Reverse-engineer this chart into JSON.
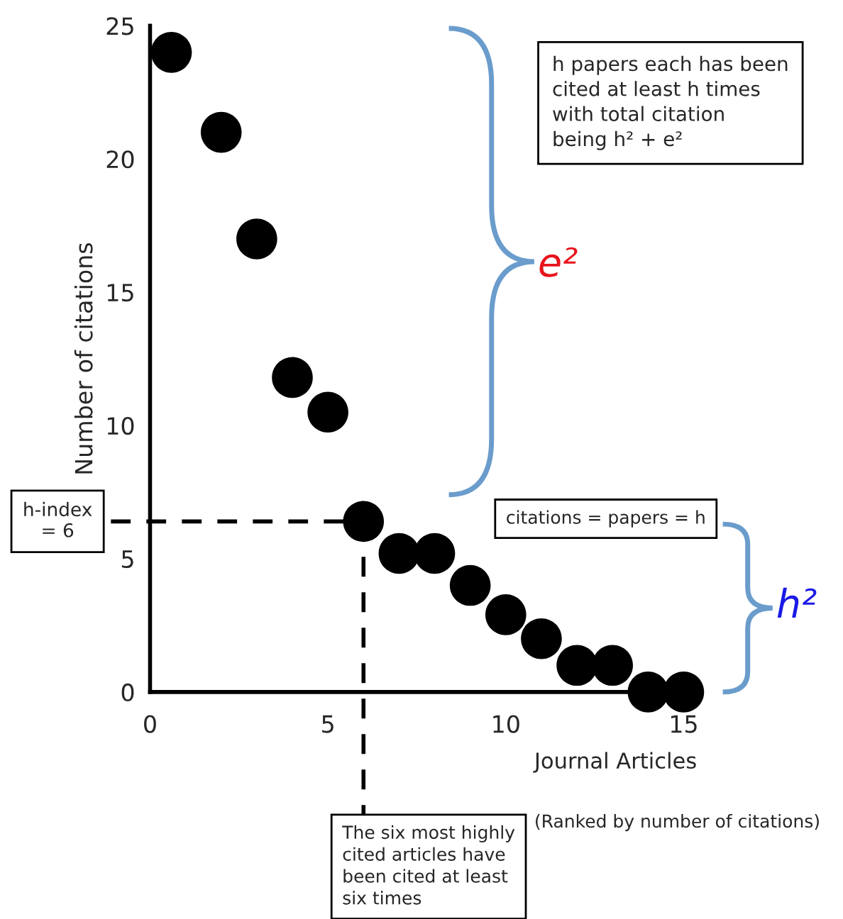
{
  "chart_data": {
    "type": "scatter",
    "xlabel": "Journal Articles",
    "ylabel": "Number of citations",
    "x": [
      0.6,
      2,
      3,
      4,
      5,
      6,
      7,
      8,
      9,
      10,
      11,
      12,
      13,
      14,
      15
    ],
    "series": [
      {
        "color": "#000000",
        "values": [
          24,
          21,
          17,
          11.8,
          10.5,
          6.4,
          5.2,
          5.2,
          4,
          2.9,
          2,
          1,
          1,
          0,
          0
        ]
      }
    ],
    "marker": "circle",
    "xlim": [
      0,
      15
    ],
    "ylim": [
      0,
      25
    ],
    "xticks": [
      0,
      5,
      10,
      15
    ],
    "yticks": [
      0,
      5,
      10,
      15,
      20,
      25
    ],
    "grid": false,
    "ref_lines": [
      {
        "axis": "y",
        "value": 6.4,
        "label": "h-index\n= 6",
        "line_style": "dashed",
        "color": "#000000"
      },
      {
        "axis": "x",
        "value": 6,
        "label": "The six most highly\ncited articles have\nbeen cited at least\nsix times",
        "line_style": "dashed",
        "color": "#000000"
      }
    ],
    "annotations": [
      "h papers each has been\ncited at least h times\nwith total citation\nbeing h² + e²",
      "citations = papers = h",
      "e²",
      "h²",
      "(Ranked by number of citations)"
    ]
  }
}
